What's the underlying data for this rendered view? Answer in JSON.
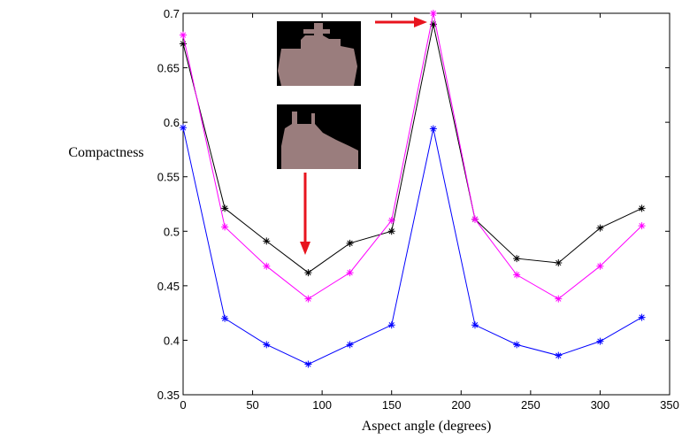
{
  "chart_data": {
    "type": "line",
    "xlabel": "Aspect angle (degrees)",
    "ylabel": "Compactness",
    "x": [
      0,
      30,
      60,
      90,
      120,
      150,
      180,
      210,
      240,
      270,
      300,
      330
    ],
    "series": [
      {
        "color": "#000000",
        "values": [
          0.672,
          0.521,
          0.491,
          0.462,
          0.489,
          0.5,
          0.69,
          0.511,
          0.475,
          0.471,
          0.503,
          0.521
        ]
      },
      {
        "color": "#ff00ff",
        "values": [
          0.68,
          0.504,
          0.468,
          0.438,
          0.462,
          0.51,
          0.7,
          0.511,
          0.46,
          0.438,
          0.468,
          0.505
        ]
      },
      {
        "color": "#0000ff",
        "values": [
          0.595,
          0.42,
          0.396,
          0.378,
          0.396,
          0.414,
          0.594,
          0.414,
          0.396,
          0.386,
          0.399,
          0.421
        ]
      }
    ],
    "xlim": [
      0,
      350
    ],
    "xticks": [
      0,
      50,
      100,
      150,
      200,
      250,
      300,
      350
    ],
    "ylim": [
      0.35,
      0.7
    ],
    "yticks": [
      0.35,
      0.4,
      0.45,
      0.5,
      0.55,
      0.6,
      0.65,
      0.7
    ],
    "grid": false
  }
}
